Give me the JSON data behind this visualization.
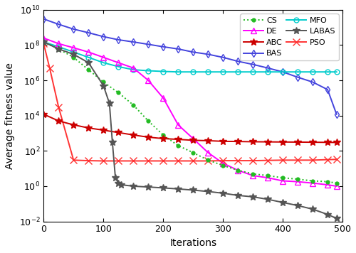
{
  "xlabel": "Iterations",
  "ylabel": "Average fitness value",
  "xlim": [
    0,
    500
  ],
  "ylim": [
    0.01,
    10000000000.0
  ],
  "x_ticks": [
    0,
    100,
    200,
    300,
    400,
    500
  ],
  "legend_order_col1": [
    "CS",
    "ABC",
    "MFO",
    "PSO"
  ],
  "legend_order_col2": [
    "DE",
    "BAS",
    "LABAS"
  ],
  "curves": {
    "CS": {
      "color": "#22bb22",
      "linestyle": ":",
      "marker": ".",
      "markersize": 7,
      "linewidth": 1.4,
      "x": [
        0,
        25,
        50,
        75,
        100,
        125,
        150,
        175,
        200,
        225,
        250,
        275,
        300,
        325,
        350,
        375,
        400,
        425,
        450,
        475,
        490
      ],
      "y": [
        150000000.0,
        60000000.0,
        20000000.0,
        4000000.0,
        800000.0,
        200000.0,
        40000.0,
        5000.0,
        800,
        200,
        80,
        30,
        15,
        8,
        5,
        4,
        3,
        2.5,
        2,
        1.8,
        1.5
      ]
    },
    "ABC": {
      "color": "#cc0000",
      "linestyle": "-",
      "marker": "*",
      "markersize": 7,
      "linewidth": 1.4,
      "x": [
        0,
        25,
        50,
        75,
        100,
        125,
        150,
        175,
        200,
        225,
        250,
        275,
        300,
        325,
        350,
        375,
        400,
        425,
        450,
        475,
        490
      ],
      "y": [
        12000.0,
        5000,
        3000,
        2000,
        1500,
        1100,
        800,
        600,
        500,
        450,
        400,
        380,
        350,
        340,
        330,
        325,
        320,
        315,
        310,
        305,
        300
      ]
    },
    "MFO": {
      "color": "#00cccc",
      "linestyle": "-",
      "marker": "o",
      "markersize": 5,
      "linewidth": 1.4,
      "x": [
        0,
        25,
        50,
        75,
        100,
        125,
        150,
        175,
        200,
        225,
        250,
        275,
        300,
        325,
        350,
        375,
        400,
        425,
        450,
        475,
        490
      ],
      "y": [
        150000000.0,
        80000000.0,
        40000000.0,
        20000000.0,
        10000000.0,
        6000000.0,
        4000000.0,
        3500000.0,
        3200000.0,
        3000000.0,
        3000000.0,
        3000000.0,
        3000000.0,
        3000000.0,
        3000000.0,
        3000000.0,
        3000000.0,
        3000000.0,
        3000000.0,
        3000000.0,
        3000000.0
      ]
    },
    "PSO": {
      "color": "#ff3333",
      "linestyle": "-",
      "marker": "x",
      "markersize": 7,
      "linewidth": 1.4,
      "x": [
        0,
        10,
        25,
        50,
        75,
        100,
        125,
        150,
        175,
        200,
        225,
        250,
        275,
        300,
        325,
        350,
        375,
        400,
        425,
        450,
        475,
        490
      ],
      "y": [
        120000000.0,
        5000000.0,
        30000.0,
        30,
        28,
        27,
        27,
        27,
        27,
        27,
        27,
        27,
        27,
        28,
        28,
        28,
        29,
        30,
        30,
        30,
        32,
        33
      ]
    },
    "DE": {
      "color": "#ff00ff",
      "linestyle": "-",
      "marker": "^",
      "markersize": 6,
      "linewidth": 1.4,
      "x": [
        0,
        25,
        50,
        75,
        100,
        125,
        150,
        175,
        200,
        225,
        250,
        275,
        300,
        325,
        350,
        375,
        400,
        425,
        450,
        475,
        490
      ],
      "y": [
        250000000.0,
        120000000.0,
        70000000.0,
        40000000.0,
        20000000.0,
        10000000.0,
        5000000.0,
        1000000.0,
        100000.0,
        3000,
        500,
        80,
        20,
        8,
        4,
        3,
        2,
        1.8,
        1.5,
        1.2,
        1.0
      ]
    },
    "BAS": {
      "color": "#4444dd",
      "linestyle": "-",
      "marker": "d",
      "markersize": 5,
      "linewidth": 1.4,
      "x": [
        0,
        25,
        50,
        75,
        100,
        125,
        150,
        175,
        200,
        225,
        250,
        275,
        300,
        325,
        350,
        375,
        400,
        425,
        450,
        475,
        490
      ],
      "y": [
        3000000000.0,
        1500000000.0,
        800000000.0,
        500000000.0,
        300000000.0,
        200000000.0,
        150000000.0,
        110000000.0,
        80000000.0,
        60000000.0,
        40000000.0,
        30000000.0,
        20000000.0,
        12000000.0,
        8000000.0,
        5000000.0,
        3000000.0,
        1500000.0,
        800000.0,
        300000.0,
        12000.0
      ]
    },
    "LABAS": {
      "color": "#555555",
      "linestyle": "-",
      "marker": "*",
      "markersize": 7,
      "linewidth": 1.4,
      "x": [
        0,
        25,
        50,
        75,
        100,
        110,
        115,
        120,
        125,
        130,
        150,
        175,
        200,
        225,
        250,
        275,
        300,
        325,
        350,
        375,
        400,
        425,
        450,
        475,
        490
      ],
      "y": [
        150000000.0,
        60000000.0,
        30000000.0,
        10000000.0,
        500000.0,
        50000.0,
        300,
        3,
        1.5,
        1.2,
        1.0,
        0.9,
        0.8,
        0.7,
        0.6,
        0.5,
        0.4,
        0.3,
        0.25,
        0.18,
        0.12,
        0.08,
        0.05,
        0.025,
        0.015
      ]
    }
  }
}
